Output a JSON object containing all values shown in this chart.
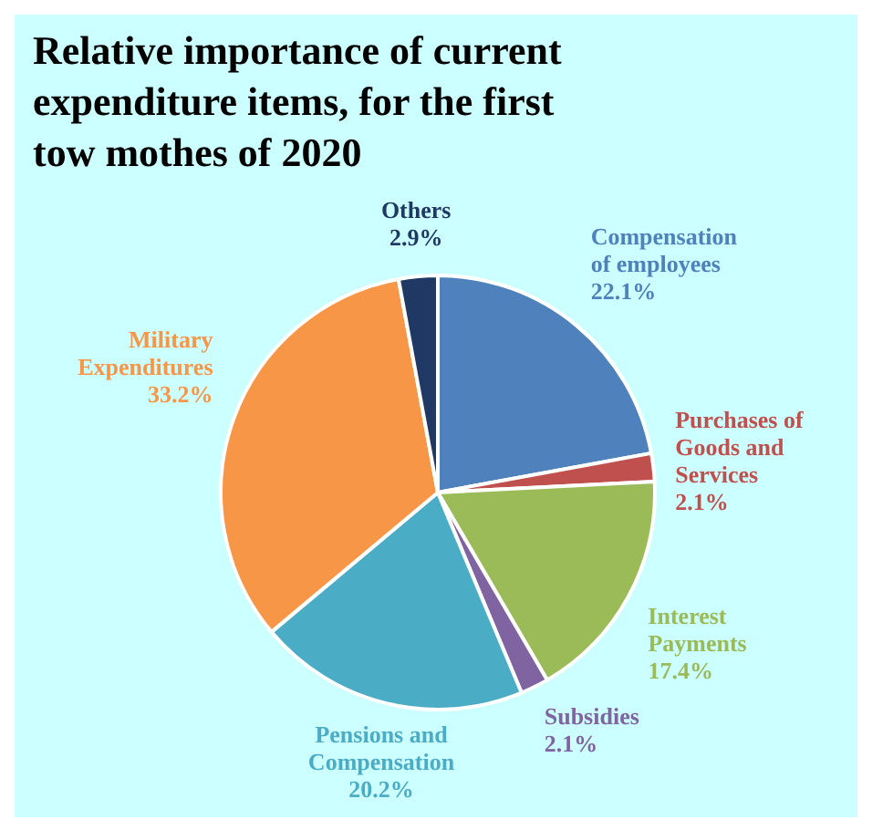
{
  "chart_data": {
    "type": "pie",
    "title": "Relative importance of current expenditure items, for the first tow mothes of 2020",
    "categories": [
      "Compensation of employees",
      "Purchases of Goods and Services",
      "Interest Payments",
      "Subsidies",
      "Pensions and Compensation",
      "Military Expenditures",
      "Others"
    ],
    "values": [
      22.1,
      2.1,
      17.4,
      2.1,
      20.2,
      33.2,
      2.9
    ],
    "colors": [
      "#4f81bd",
      "#c0504d",
      "#9bbb59",
      "#8064a2",
      "#4bacc6",
      "#f79646",
      "#1f3864"
    ],
    "value_labels": [
      "22.1%",
      "2.1%",
      "17.4%",
      "2.1%",
      "20.2%",
      "33.2%",
      "2.9%"
    ],
    "legend": false
  }
}
